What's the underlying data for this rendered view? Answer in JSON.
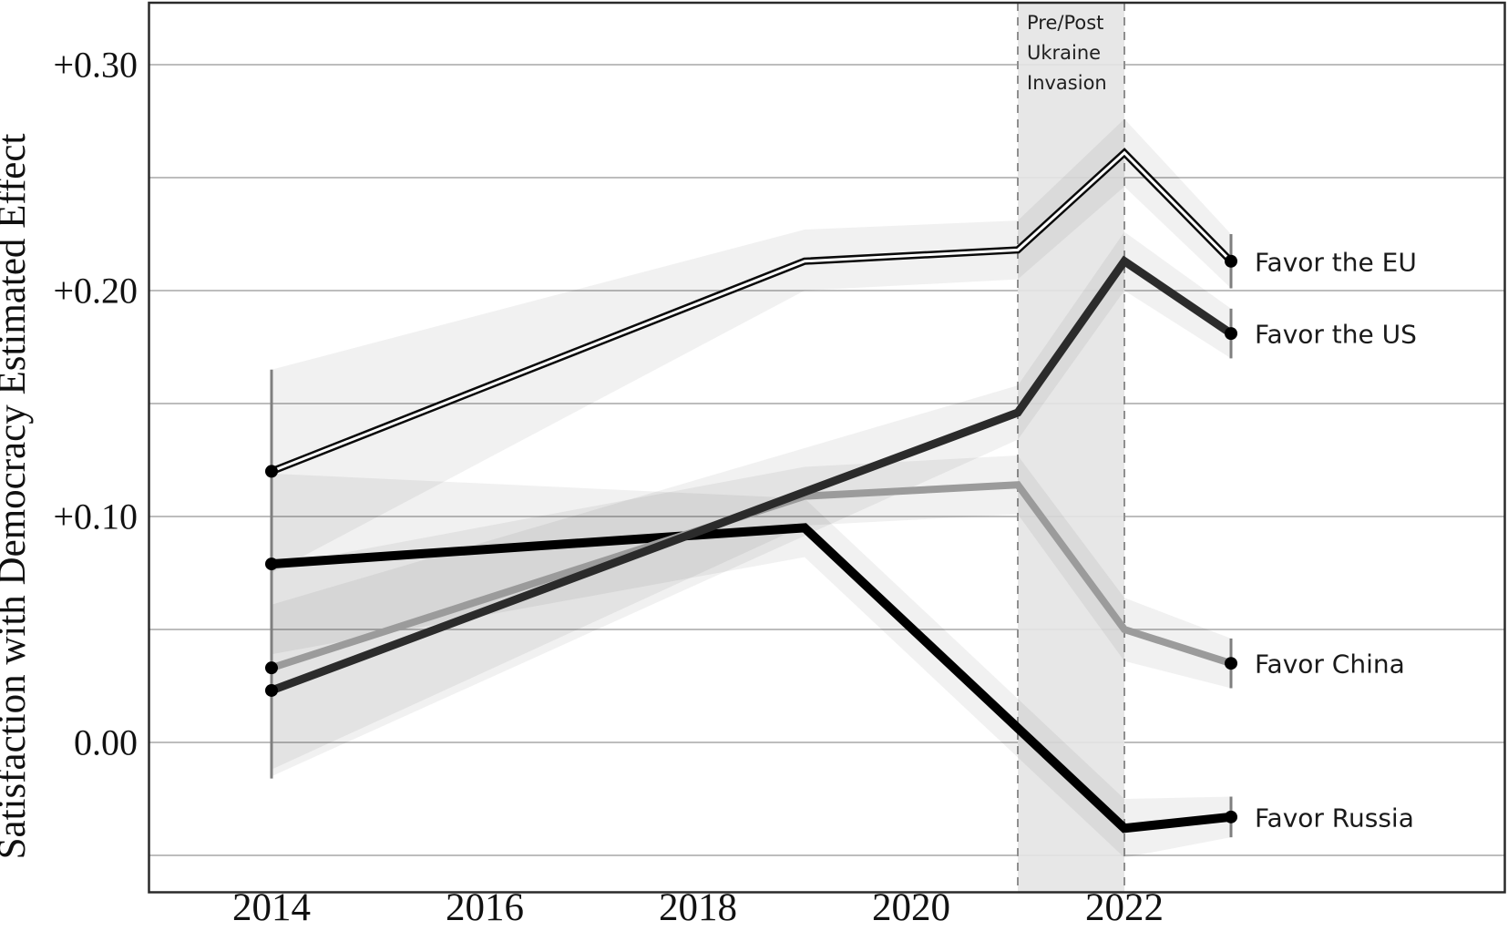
{
  "figure": {
    "bg": "#ffffff",
    "border_color": "#2a2a2a",
    "grid_color": "#bdbdbd",
    "text_color": "#111111"
  },
  "chart_data": {
    "type": "line",
    "title": "",
    "ylabel": "Satisfaction with Democracy Estimated Effect",
    "xlabel": "",
    "x_ticks": [
      2014,
      2016,
      2018,
      2020,
      2022
    ],
    "y_ticks": [
      {
        "v": 0.3,
        "label": "+0.30"
      },
      {
        "v": 0.2,
        "label": "+0.20"
      },
      {
        "v": 0.1,
        "label": "+0.10"
      },
      {
        "v": 0.0,
        "label": "0.00"
      }
    ],
    "grid_values": [
      0.3,
      0.25,
      0.2,
      0.15,
      0.1,
      0.05,
      0.0,
      -0.05
    ],
    "ylim": [
      -0.067,
      0.327
    ],
    "xlim": [
      2012.85,
      2025.6
    ],
    "grid": "horizontal-only",
    "legend_position": "inline-right-of-last-point",
    "series": [
      {
        "id": "russia",
        "name": "Favor Russia",
        "style": "solid",
        "color": "#000000",
        "width": 10,
        "points": [
          [
            2014,
            0.079
          ],
          [
            2019,
            0.095
          ],
          [
            2022,
            -0.038
          ],
          [
            2023,
            -0.033
          ]
        ],
        "ci_band": [
          [
            2014,
            0.039,
            0.119
          ],
          [
            2019,
            0.082,
            0.108
          ],
          [
            2022,
            -0.051,
            -0.025
          ],
          [
            2023,
            -0.042,
            -0.024
          ]
        ]
      },
      {
        "id": "china",
        "name": "Favor China",
        "style": "solid",
        "color": "#9b9b9b",
        "width": 8,
        "points": [
          [
            2014,
            0.033
          ],
          [
            2019,
            0.109
          ],
          [
            2021,
            0.114
          ],
          [
            2022,
            0.05
          ],
          [
            2023,
            0.035
          ]
        ],
        "ci_band": [
          [
            2014,
            -0.012,
            0.078
          ],
          [
            2019,
            0.096,
            0.122
          ],
          [
            2021,
            0.101,
            0.127
          ],
          [
            2022,
            0.036,
            0.064
          ],
          [
            2023,
            0.024,
            0.046
          ]
        ]
      },
      {
        "id": "us",
        "name": "Favor the US",
        "style": "solid",
        "color": "#2b2b2b",
        "width": 9,
        "points": [
          [
            2014,
            0.023
          ],
          [
            2021,
            0.146
          ],
          [
            2022,
            0.213
          ],
          [
            2023,
            0.181
          ]
        ],
        "ci_band": [
          [
            2014,
            -0.015,
            0.061
          ],
          [
            2021,
            0.134,
            0.158
          ],
          [
            2022,
            0.2,
            0.226
          ],
          [
            2023,
            0.17,
            0.192
          ]
        ]
      },
      {
        "id": "eu",
        "name": "Favor the EU",
        "style": "double",
        "color": "#0a0a0a",
        "core_color": "#ffffff",
        "width": 8,
        "core_width": 3,
        "points": [
          [
            2014,
            0.12
          ],
          [
            2019,
            0.213
          ],
          [
            2021,
            0.218
          ],
          [
            2022,
            0.261
          ],
          [
            2023,
            0.213
          ]
        ],
        "ci_band": [
          [
            2014,
            0.075,
            0.165
          ],
          [
            2019,
            0.2,
            0.227
          ],
          [
            2021,
            0.205,
            0.231
          ],
          [
            2022,
            0.246,
            0.276
          ],
          [
            2023,
            0.201,
            0.225
          ]
        ]
      }
    ],
    "error_bars": [
      {
        "x": 2014,
        "lo": -0.016,
        "hi": 0.165
      },
      {
        "x": 2023,
        "lo": 0.201,
        "hi": 0.225
      },
      {
        "x": 2023,
        "lo": 0.17,
        "hi": 0.192
      },
      {
        "x": 2023,
        "lo": 0.024,
        "hi": 0.046
      },
      {
        "x": 2023,
        "lo": -0.042,
        "hi": -0.024
      }
    ],
    "event_band": {
      "x_start": 2021,
      "x_end": 2022,
      "fill": "#e4e4e4",
      "fill_opacity": 0.9,
      "dash_color": "#8f8f8f",
      "label_lines": [
        "Pre/Post",
        "Ukraine",
        "Invasion"
      ]
    },
    "ci_fill": "#000000",
    "ci_opacity": 0.055,
    "marker_radius": 7,
    "whisker_color": "#7f7f7f"
  }
}
